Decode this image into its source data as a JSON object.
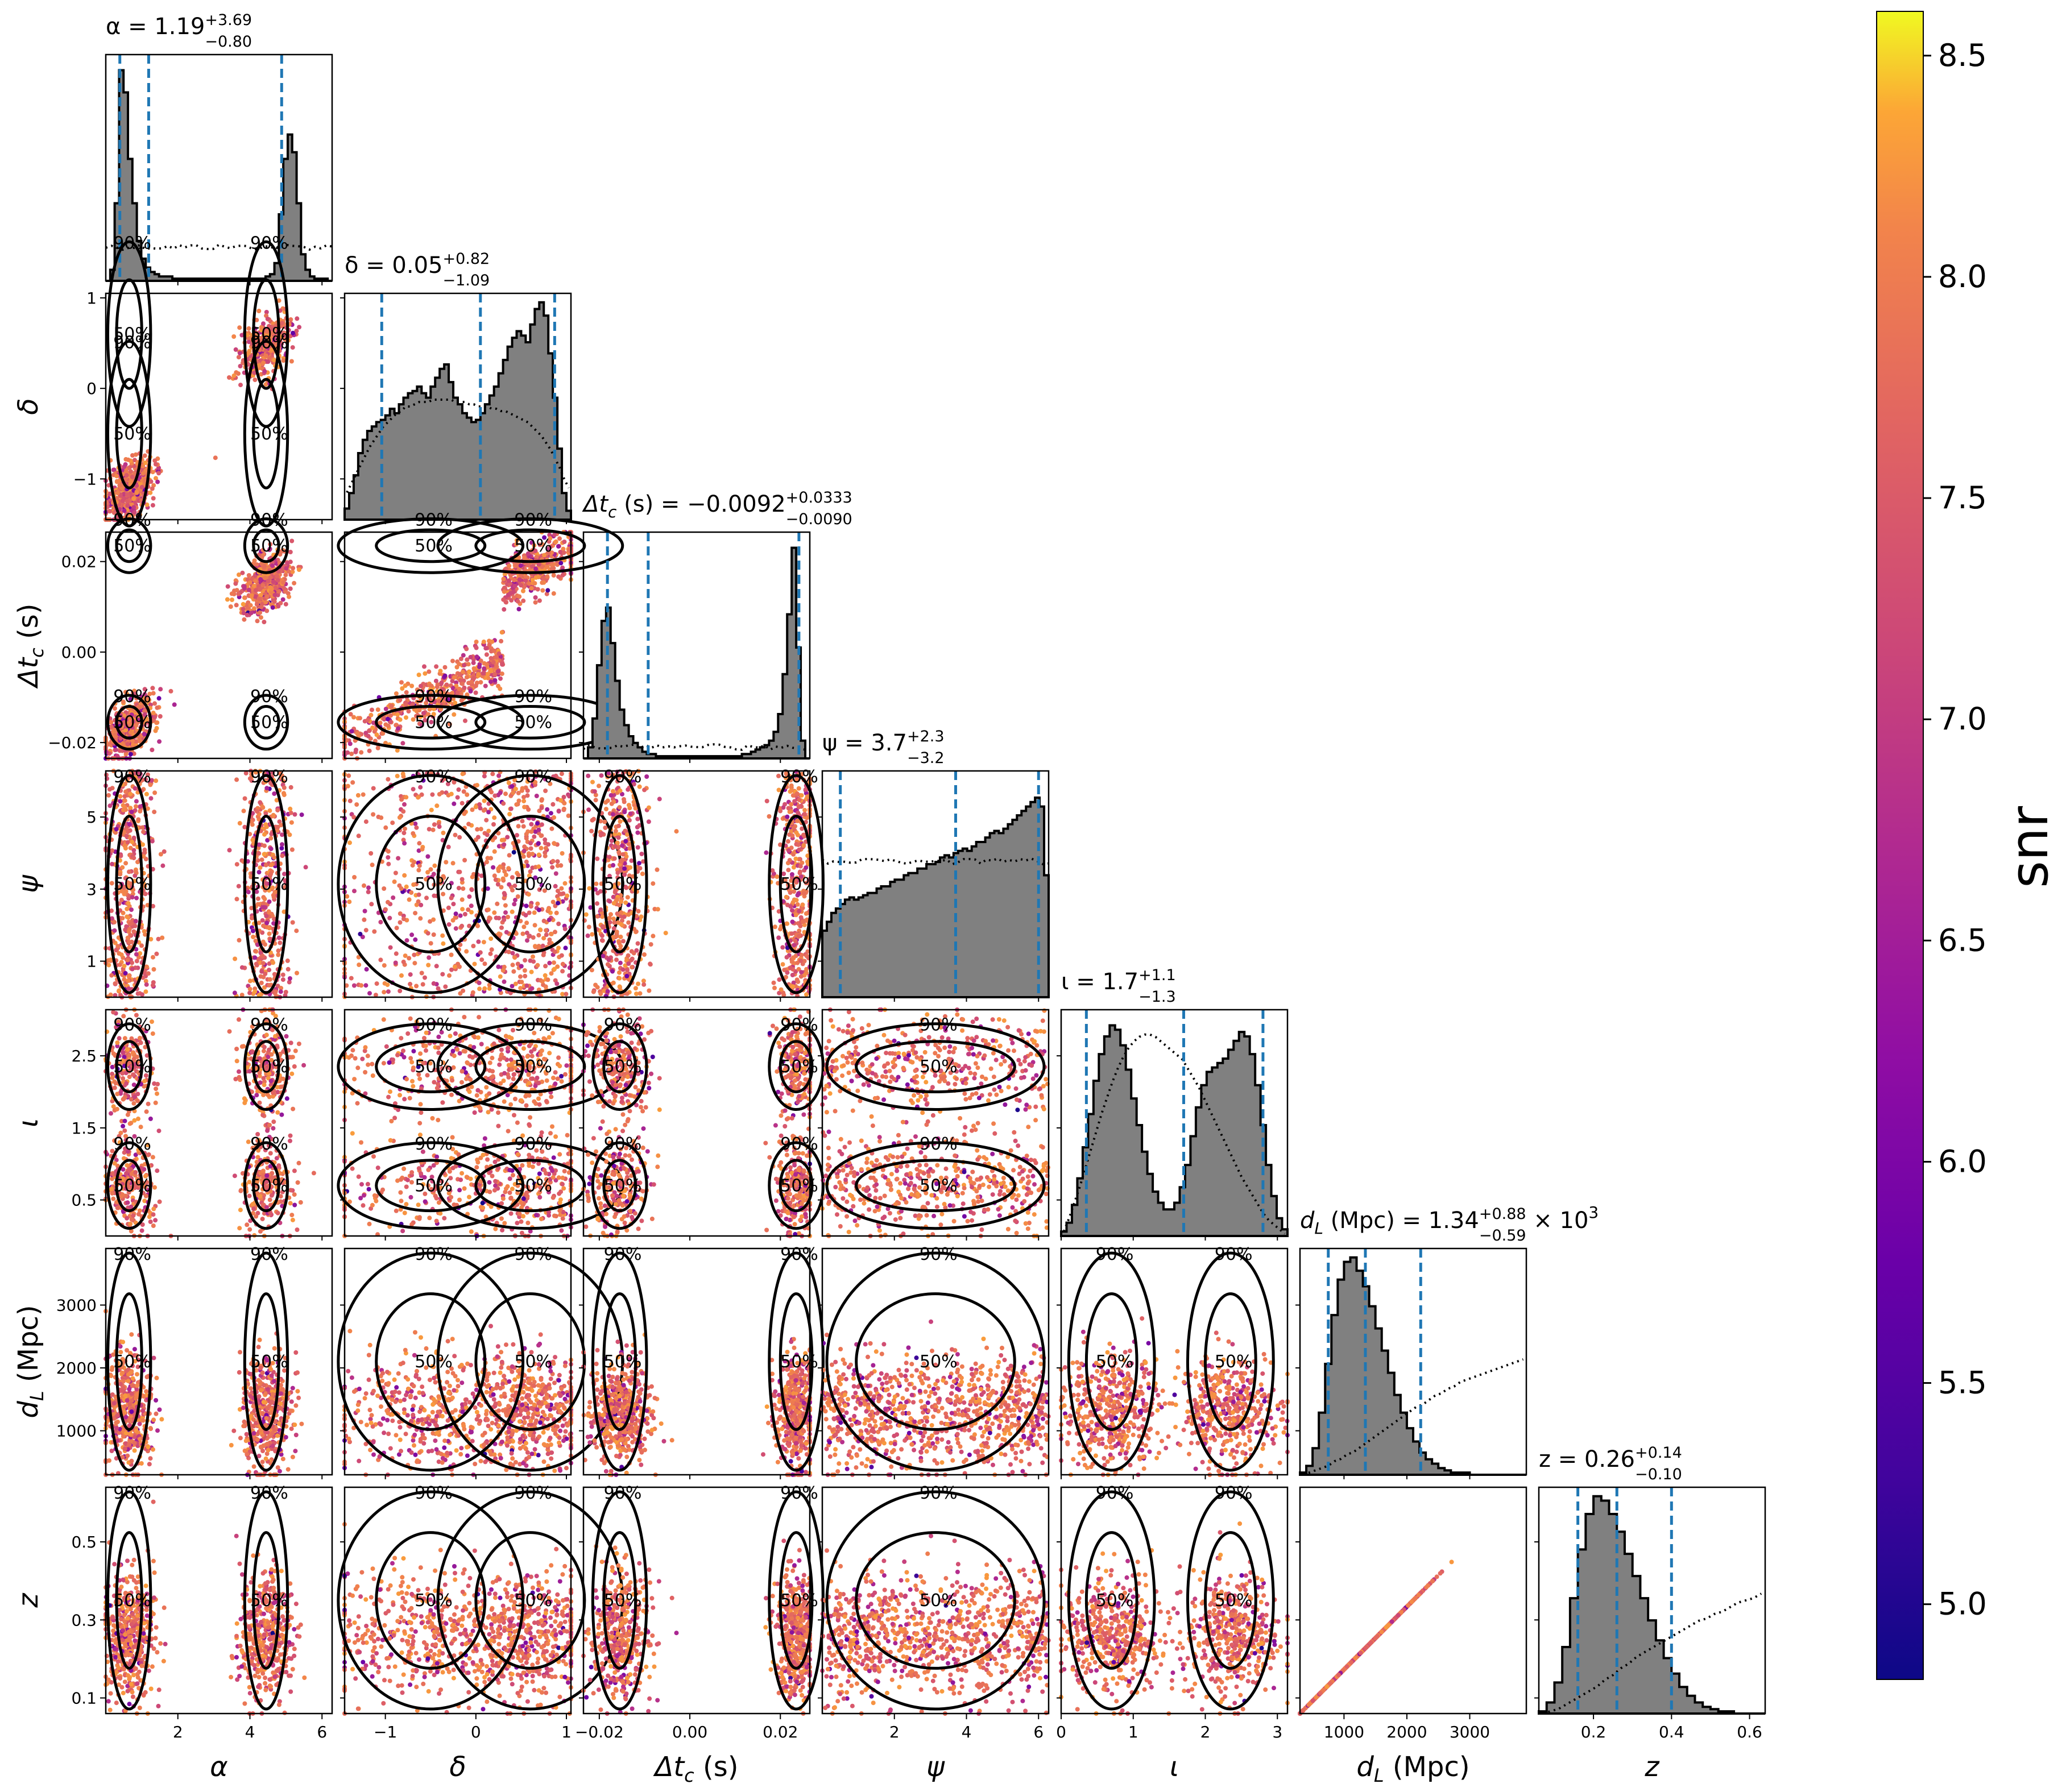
{
  "chart_data": {
    "type": "scatter",
    "kind": "corner",
    "colorbar": {
      "label": "snr",
      "range": [
        4.83,
        8.6
      ],
      "ticks": [
        "5.0",
        "5.5",
        "6.0",
        "6.5",
        "7.0",
        "7.5",
        "8.0",
        "8.5"
      ],
      "tick_values": [
        5.0,
        5.5,
        6.0,
        6.5,
        7.0,
        7.5,
        8.0,
        8.5
      ],
      "colormap": "plasma"
    },
    "contour_levels": [
      "50%",
      "90%"
    ],
    "colors": {
      "histogram_fill": "#808080",
      "quantile_line": "#1f77b4",
      "contour": "#000000"
    },
    "params": [
      {
        "key": "alpha",
        "axis_label": "α",
        "title": "α = 1.19",
        "title_sup": "+3.69",
        "title_sub": "−0.80",
        "title_suffix": "",
        "range": [
          0.0,
          6.28
        ],
        "ticks": [
          2,
          4,
          6
        ],
        "tick_labels": [
          "2",
          "4",
          "6"
        ],
        "quantiles": [
          0.39,
          1.19,
          4.88
        ]
      },
      {
        "key": "delta",
        "axis_label": "δ",
        "title": "δ = 0.05",
        "title_sup": "+0.82",
        "title_sub": "−1.09",
        "title_suffix": "",
        "range": [
          -1.45,
          1.05
        ],
        "ticks": [
          -1,
          0,
          1
        ],
        "tick_labels": [
          "−1",
          "0",
          "1"
        ],
        "quantiles": [
          -1.04,
          0.05,
          0.87
        ]
      },
      {
        "key": "dtc",
        "axis_label": "Δt",
        "axis_label_sub": "c",
        "axis_label_suffix": " (s)",
        "title": "Δt",
        "title_sub_letter": "c",
        "title_mid": " (s) = −0.0092",
        "title_sup": "+0.0333",
        "title_sub": "−0.0090",
        "title_suffix": "",
        "range": [
          -0.0235,
          0.0265
        ],
        "ticks": [
          -0.02,
          0.0,
          0.02
        ],
        "tick_labels": [
          "−0.02",
          "0.00",
          "0.02"
        ],
        "y_tick_labels": [
          "−0.02",
          "0.00",
          "0.02"
        ],
        "quantiles": [
          -0.0182,
          -0.0092,
          0.0241
        ]
      },
      {
        "key": "psi",
        "axis_label": "ψ",
        "title": "ψ = 3.7",
        "title_sup": "+2.3",
        "title_sub": "−3.2",
        "title_suffix": "",
        "range": [
          0.0,
          6.28
        ],
        "ticks": [
          1,
          3,
          5
        ],
        "tick_labels": [
          "1",
          "3",
          "5"
        ],
        "x_ticks": [
          2,
          4,
          6
        ],
        "x_tick_labels": [
          "2",
          "4",
          "6"
        ],
        "quantiles": [
          0.5,
          3.7,
          6.0
        ]
      },
      {
        "key": "iota",
        "axis_label": "ι",
        "title": "ι = 1.7",
        "title_sup": "+1.1",
        "title_sub": "−1.3",
        "title_suffix": "",
        "range": [
          0.0,
          3.14
        ],
        "ticks": [
          0.5,
          1.5,
          2.5
        ],
        "tick_labels": [
          "0.5",
          "1.5",
          "2.5"
        ],
        "x_ticks": [
          0,
          1,
          2,
          3
        ],
        "x_tick_labels": [
          "0",
          "1",
          "2",
          "3"
        ],
        "quantiles": [
          0.35,
          1.7,
          2.8
        ]
      },
      {
        "key": "dL",
        "axis_label": "d",
        "axis_label_sub": "L",
        "axis_label_suffix": " (Mpc)",
        "title": "d",
        "title_sub_letter": "L",
        "title_mid": " (Mpc) = 1.34",
        "title_sup": "+0.88",
        "title_sub": "−0.59",
        "title_suffix": " × 10",
        "title_suffix_sup": "3",
        "range": [
          300,
          3900
        ],
        "ticks": [
          1000,
          2000,
          3000
        ],
        "tick_labels": [
          "1000",
          "2000",
          "3000"
        ],
        "quantiles": [
          750,
          1340,
          2220
        ]
      },
      {
        "key": "z",
        "axis_label": "z",
        "title": "z = 0.26",
        "title_sup": "+0.14",
        "title_sub": "−0.10",
        "title_suffix": "",
        "range": [
          0.06,
          0.64
        ],
        "ticks": [
          0.1,
          0.3,
          0.5
        ],
        "tick_labels": [
          "0.1",
          "0.3",
          "0.5"
        ],
        "x_ticks": [
          0.2,
          0.4,
          0.6
        ],
        "x_tick_labels": [
          "0.2",
          "0.4",
          "0.6"
        ],
        "quantiles": [
          0.16,
          0.26,
          0.4
        ]
      }
    ],
    "histograms": {
      "alpha": {
        "bins": [
          0.0,
          6.28
        ],
        "density": [
          0.0,
          0.05,
          0.35,
          0.95,
          0.85,
          0.55,
          0.35,
          0.18,
          0.1,
          0.06,
          0.04,
          0.03,
          0.02,
          0.02,
          0.02,
          0.01,
          0.01,
          0.01,
          0.01,
          0.01,
          0.01,
          0.01,
          0.01,
          0.01,
          0.01,
          0.01,
          0.01,
          0.01,
          0.01,
          0.01,
          0.01,
          0.01,
          0.01,
          0.01,
          0.01,
          0.01,
          0.02,
          0.03,
          0.08,
          0.3,
          0.55,
          0.66,
          0.58,
          0.35,
          0.12,
          0.05,
          0.02,
          0.01,
          0.01,
          0.01,
          0.0
        ],
        "prior": 0.15
      },
      "delta": {
        "bins": [
          -1.45,
          1.05
        ],
        "density": [
          0.05,
          0.12,
          0.2,
          0.3,
          0.36,
          0.4,
          0.42,
          0.44,
          0.45,
          0.47,
          0.5,
          0.48,
          0.52,
          0.55,
          0.57,
          0.58,
          0.6,
          0.57,
          0.55,
          0.6,
          0.64,
          0.68,
          0.7,
          0.62,
          0.55,
          0.52,
          0.48,
          0.46,
          0.44,
          0.45,
          0.48,
          0.52,
          0.56,
          0.6,
          0.66,
          0.72,
          0.78,
          0.82,
          0.85,
          0.83,
          0.8,
          0.88,
          0.95,
          0.98,
          0.92,
          0.75,
          0.55,
          0.32,
          0.12,
          0.04
        ],
        "prior": [
          0.12,
          0.16,
          0.2,
          0.24,
          0.28,
          0.32,
          0.35,
          0.38,
          0.41,
          0.43,
          0.45,
          0.47,
          0.48,
          0.5,
          0.5,
          0.51,
          0.52,
          0.52,
          0.52,
          0.53,
          0.53,
          0.53,
          0.53,
          0.53,
          0.52,
          0.52,
          0.52,
          0.51,
          0.51,
          0.5,
          0.5,
          0.5,
          0.49,
          0.49,
          0.48,
          0.48,
          0.47,
          0.46,
          0.45,
          0.44,
          0.43,
          0.41,
          0.39,
          0.37,
          0.34,
          0.31,
          0.27,
          0.23,
          0.18,
          0.14
        ]
      },
      "dtc": {
        "bins": [
          -0.0235,
          0.0265
        ],
        "density": [
          0.0,
          0.05,
          0.18,
          0.42,
          0.62,
          0.68,
          0.52,
          0.35,
          0.22,
          0.15,
          0.1,
          0.07,
          0.05,
          0.03,
          0.02,
          0.02,
          0.01,
          0.01,
          0.01,
          0.01,
          0.01,
          0.01,
          0.01,
          0.01,
          0.01,
          0.01,
          0.01,
          0.01,
          0.01,
          0.01,
          0.01,
          0.01,
          0.01,
          0.01,
          0.01,
          0.02,
          0.02,
          0.03,
          0.04,
          0.05,
          0.06,
          0.08,
          0.12,
          0.2,
          0.38,
          0.65,
          0.95,
          0.5,
          0.08,
          0.0
        ],
        "prior": 0.05
      },
      "psi": {
        "bins": [
          0.0,
          6.28
        ],
        "density": [
          0.3,
          0.34,
          0.38,
          0.4,
          0.42,
          0.44,
          0.45,
          0.44,
          0.45,
          0.46,
          0.47,
          0.47,
          0.49,
          0.5,
          0.5,
          0.52,
          0.53,
          0.53,
          0.55,
          0.56,
          0.56,
          0.58,
          0.58,
          0.6,
          0.6,
          0.61,
          0.63,
          0.64,
          0.63,
          0.65,
          0.66,
          0.67,
          0.66,
          0.68,
          0.7,
          0.7,
          0.72,
          0.74,
          0.75,
          0.74,
          0.76,
          0.78,
          0.8,
          0.82,
          0.84,
          0.86,
          0.88,
          0.9,
          0.86,
          0.55
        ],
        "prior": 0.6
      },
      "iota": {
        "bins": [
          0.0,
          3.14
        ],
        "density": [
          0.02,
          0.06,
          0.14,
          0.26,
          0.4,
          0.55,
          0.7,
          0.82,
          0.9,
          0.95,
          0.93,
          0.86,
          0.75,
          0.62,
          0.5,
          0.38,
          0.28,
          0.2,
          0.15,
          0.12,
          0.12,
          0.15,
          0.22,
          0.32,
          0.45,
          0.58,
          0.68,
          0.74,
          0.76,
          0.78,
          0.8,
          0.84,
          0.88,
          0.92,
          0.9,
          0.82,
          0.68,
          0.5,
          0.32,
          0.18,
          0.08,
          0.03
        ],
        "prior": [
          0.02,
          0.08,
          0.15,
          0.22,
          0.3,
          0.38,
          0.46,
          0.54,
          0.61,
          0.68,
          0.74,
          0.79,
          0.83,
          0.86,
          0.88,
          0.89,
          0.89,
          0.88,
          0.86,
          0.84,
          0.82,
          0.8,
          0.78,
          0.74,
          0.7,
          0.66,
          0.61,
          0.56,
          0.51,
          0.46,
          0.41,
          0.36,
          0.31,
          0.26,
          0.22,
          0.18,
          0.14,
          0.1,
          0.07,
          0.05,
          0.03,
          0.01
        ]
      },
      "dL": {
        "bins": [
          300,
          3900
        ],
        "density": [
          0.01,
          0.04,
          0.12,
          0.28,
          0.5,
          0.72,
          0.88,
          0.96,
          0.98,
          0.92,
          0.85,
          0.76,
          0.66,
          0.56,
          0.46,
          0.36,
          0.28,
          0.21,
          0.15,
          0.1,
          0.07,
          0.05,
          0.03,
          0.02,
          0.01,
          0.01,
          0.01,
          0.0,
          0.0,
          0.0,
          0.0,
          0.0,
          0.0,
          0.0,
          0.0,
          0.0
        ],
        "prior": [
          0.0,
          0.01,
          0.02,
          0.03,
          0.04,
          0.06,
          0.07,
          0.09,
          0.1,
          0.12,
          0.14,
          0.16,
          0.18,
          0.2,
          0.22,
          0.24,
          0.26,
          0.28,
          0.3,
          0.31,
          0.33,
          0.35,
          0.36,
          0.38,
          0.39,
          0.41,
          0.42,
          0.43,
          0.44,
          0.45,
          0.46,
          0.47,
          0.48,
          0.49,
          0.5,
          0.51
        ]
      },
      "z": {
        "bins": [
          0.06,
          0.64
        ],
        "density": [
          0.01,
          0.05,
          0.14,
          0.3,
          0.52,
          0.74,
          0.9,
          0.98,
          0.96,
          0.9,
          0.82,
          0.72,
          0.62,
          0.52,
          0.42,
          0.33,
          0.25,
          0.18,
          0.12,
          0.08,
          0.05,
          0.03,
          0.02,
          0.01,
          0.01,
          0.0,
          0.0,
          0.0,
          0.0
        ],
        "prior": [
          0.0,
          0.01,
          0.02,
          0.04,
          0.06,
          0.08,
          0.1,
          0.12,
          0.15,
          0.17,
          0.2,
          0.22,
          0.25,
          0.27,
          0.29,
          0.31,
          0.33,
          0.35,
          0.37,
          0.39,
          0.41,
          0.42,
          0.44,
          0.45,
          0.47,
          0.49,
          0.5,
          0.51,
          0.53
        ]
      }
    },
    "modes_2d": {
      "alpha": [
        {
          "c": 0.65,
          "w": 0.35
        },
        {
          "c": 4.45,
          "w": 0.35
        }
      ],
      "dtc": [
        {
          "c": -0.0155,
          "w": 0.0035
        },
        {
          "c": 0.0235,
          "w": 0.0022
        }
      ],
      "iota": [
        {
          "c": 0.7,
          "w": 0.35
        },
        {
          "c": 2.35,
          "w": 0.35
        }
      ],
      "delta": [
        {
          "c": -0.5,
          "w": 0.6
        },
        {
          "c": 0.6,
          "w": 0.35
        }
      ]
    },
    "notes": []
  }
}
